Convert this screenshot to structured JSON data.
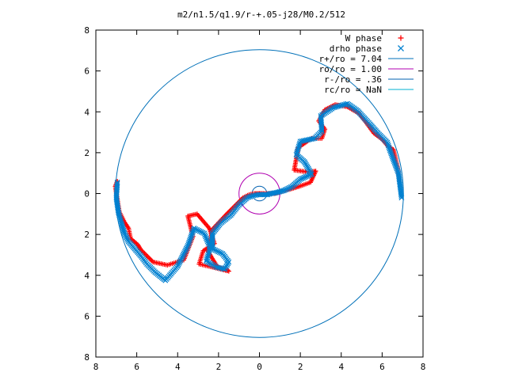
{
  "chart_data": {
    "type": "scatter",
    "title": "m2/n1.5/q1.9/r-+.05-j28/M0.2/512",
    "xlabel": "",
    "ylabel": "",
    "xlim": [
      -8,
      8
    ],
    "ylim": [
      -8,
      8
    ],
    "grid": false,
    "legend_position": "top-right",
    "x_tick_labels": [
      "8",
      "6",
      "4",
      "2",
      "0",
      "2",
      "4",
      "6",
      "8"
    ],
    "y_tick_labels": [
      "8",
      "6",
      "4",
      "2",
      "0",
      "2",
      "4",
      "6",
      "8"
    ],
    "tick_values": [
      -8,
      -6,
      -4,
      -2,
      0,
      2,
      4,
      6,
      8
    ],
    "legend": [
      {
        "label": "W phase",
        "kind": "point",
        "marker": "+",
        "color": "#ff0000"
      },
      {
        "label": "drho phase",
        "kind": "point",
        "marker": "x",
        "color": "#0080d0"
      },
      {
        "label": "r+/ro = 7.04",
        "kind": "line",
        "color": "#0070b8"
      },
      {
        "label": "ro/ro = 1.00",
        "kind": "line",
        "color": "#b000b0"
      },
      {
        "label": "r-/ro = .36",
        "kind": "line",
        "color": "#0060b0"
      },
      {
        "label": "rc/ro = NaN",
        "kind": "line",
        "color": "#00b0d0"
      }
    ],
    "circles": [
      {
        "radius": 7.04,
        "color": "#0070b8"
      },
      {
        "radius": 1.0,
        "color": "#b000b0"
      },
      {
        "radius": 0.36,
        "color": "#0060b0"
      }
    ],
    "series": [
      {
        "name": "W phase",
        "color": "#ff0000",
        "marker": "+",
        "x": [
          6.85,
          6.75,
          6.55,
          6.3,
          6.0,
          5.6,
          4.9,
          4.3,
          3.7,
          3.2,
          2.9,
          3.2,
          3.05,
          2.55,
          1.9,
          1.7,
          2.4,
          2.75,
          2.5,
          1.95,
          1.45,
          1.05,
          0.75,
          0.5,
          0.25,
          0.05,
          -0.05,
          -0.25,
          -0.5,
          -0.8,
          -1.2,
          -1.6,
          -2.3,
          -2.5,
          -2.05,
          -1.55,
          -1.5,
          -2.3,
          -2.95,
          -2.75,
          -2.2,
          -2.45,
          -3.05,
          -3.5,
          -3.25,
          -3.7,
          -4.5,
          -5.2,
          -5.8,
          -5.95,
          -6.3,
          -6.4,
          -6.6,
          -6.85,
          -7.05,
          -6.95
        ],
        "y": [
          0.6,
          1.3,
          2.15,
          2.3,
          2.65,
          2.95,
          3.9,
          4.25,
          4.35,
          4.1,
          3.55,
          3.15,
          2.7,
          2.7,
          2.25,
          1.15,
          1.05,
          1.1,
          0.55,
          0.35,
          0.2,
          0.1,
          0.0,
          0.0,
          0.0,
          0.0,
          0.0,
          0.0,
          -0.05,
          -0.2,
          -0.6,
          -1.0,
          -1.75,
          -2.85,
          -3.6,
          -3.75,
          -3.8,
          -3.6,
          -3.45,
          -2.8,
          -2.45,
          -1.7,
          -1.0,
          -1.1,
          -2.1,
          -3.25,
          -3.5,
          -3.35,
          -2.75,
          -2.5,
          -2.2,
          -1.7,
          -1.4,
          -0.9,
          0.35,
          0.6
        ]
      },
      {
        "name": "drho phase",
        "color": "#0080d0",
        "marker": "x",
        "x": [
          6.95,
          6.8,
          6.5,
          6.25,
          5.8,
          5.4,
          4.8,
          4.3,
          3.6,
          3.0,
          3.05,
          2.7,
          2.0,
          1.8,
          2.2,
          2.55,
          2.0,
          1.6,
          1.2,
          0.85,
          0.55,
          0.4,
          0.2,
          -0.05,
          -0.3,
          -0.6,
          -1.0,
          -1.4,
          -1.9,
          -2.3,
          -2.3,
          -1.8,
          -1.5,
          -1.7,
          -2.1,
          -2.6,
          -2.4,
          -2.7,
          -3.2,
          -3.5,
          -4.0,
          -4.6,
          -5.1,
          -5.5,
          -5.8,
          -6.1,
          -6.4,
          -6.6,
          -6.75,
          -6.9,
          -7.0,
          -6.95
        ],
        "y": [
          -0.2,
          1.0,
          1.8,
          2.5,
          2.95,
          3.4,
          4.05,
          4.4,
          4.2,
          3.8,
          3.05,
          2.7,
          2.55,
          1.9,
          1.55,
          0.95,
          0.7,
          0.35,
          0.15,
          0.05,
          0.0,
          -0.05,
          -0.05,
          -0.05,
          -0.1,
          -0.2,
          -0.55,
          -1.05,
          -1.45,
          -1.95,
          -2.7,
          -2.95,
          -3.35,
          -3.7,
          -3.6,
          -3.3,
          -2.65,
          -1.95,
          -1.7,
          -2.55,
          -3.55,
          -4.25,
          -3.85,
          -3.45,
          -3.05,
          -2.7,
          -2.35,
          -1.95,
          -1.45,
          -0.9,
          -0.2,
          0.55
        ]
      }
    ]
  }
}
